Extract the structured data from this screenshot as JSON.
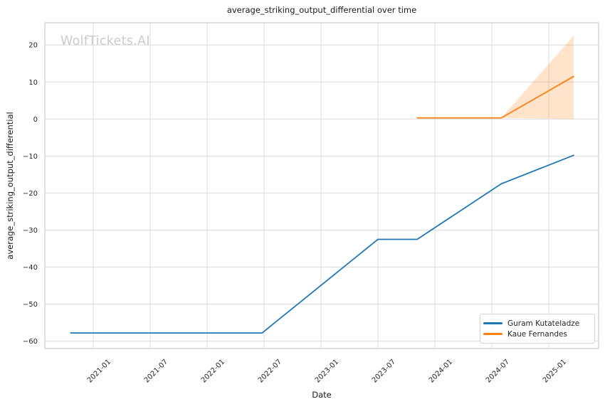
{
  "watermark": "WolfTickets.AI",
  "chart_data": {
    "type": "line",
    "title": "average_striking_output_differential over time",
    "xlabel": "Date",
    "ylabel": "average_striking_output_differential",
    "grid": true,
    "legend_position": "lower right",
    "x_tick_labels": [
      "2021-01",
      "2021-07",
      "2022-01",
      "2022-07",
      "2023-01",
      "2023-07",
      "2024-01",
      "2024-07",
      "2025-01"
    ],
    "y_ticks": [
      20,
      10,
      0,
      -10,
      -20,
      -30,
      -40,
      -50,
      -60
    ],
    "y_tick_labels": [
      "20",
      "10",
      "0",
      "−10",
      "−20",
      "−30",
      "−40",
      "−50",
      "−60"
    ],
    "xlim_decimal_years": [
      2020.575,
      2025.4375
    ],
    "ylim": [
      -62,
      26
    ],
    "series": [
      {
        "name": "Guram Kutateladze",
        "color": "#1f77b4",
        "points": [
          [
            "2020-10-20",
            -57.8
          ],
          [
            "2022-06-25",
            -57.8
          ],
          [
            "2023-07-01",
            -32.5
          ],
          [
            "2023-11-05",
            -32.5
          ],
          [
            "2024-08-01",
            -17.5
          ],
          [
            "2025-03-20",
            -9.8
          ]
        ]
      },
      {
        "name": "Kaue Fernandes",
        "color": "#ff7f0e",
        "points": [
          [
            "2023-11-05",
            0.3
          ],
          [
            "2024-08-01",
            0.3
          ],
          [
            "2025-03-20",
            11.5
          ]
        ],
        "band": {
          "x": [
            "2024-08-01",
            "2025-03-20"
          ],
          "lo": [
            0.3,
            0.0
          ],
          "hi": [
            0.3,
            22.5
          ],
          "fill": "rgba(255,127,14,0.22)"
        }
      }
    ],
    "style": {
      "grid_color": "#dcdcdc",
      "spine_color": "#cccccc",
      "tick_label_color": "#262626",
      "title_color": "#1a1a1a",
      "watermark_color": "#cbcbcb"
    }
  }
}
